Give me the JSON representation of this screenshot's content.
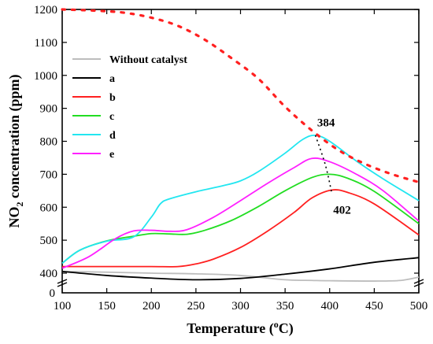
{
  "chart_data": {
    "type": "line",
    "xlabel": "Temperature (",
    "xlabel_sup": "o",
    "xlabel_tail": "C)",
    "ylabel_pre": "NO",
    "ylabel_sub": "2",
    "ylabel_tail": " concentration (ppm)",
    "xlim": [
      100,
      500
    ],
    "ylim_upper": [
      400,
      1200
    ],
    "y_break_tick": 0,
    "x_ticks": [
      100,
      150,
      200,
      250,
      300,
      350,
      400,
      450,
      500
    ],
    "y_ticks": [
      400,
      500,
      600,
      700,
      800,
      900,
      1000,
      1100,
      1200
    ],
    "legend_position": "upper-left",
    "series": [
      {
        "name": "Without catalyst",
        "color": "#bdbdbd",
        "x": [
          100,
          150,
          200,
          250,
          300,
          350,
          380,
          400,
          450,
          480,
          500
        ],
        "y": [
          405,
          403,
          400,
          398,
          393,
          380,
          378,
          377,
          376,
          378,
          388
        ]
      },
      {
        "name": "a",
        "color": "#000000",
        "x": [
          100,
          150,
          200,
          250,
          300,
          350,
          400,
          450,
          500
        ],
        "y": [
          405,
          393,
          385,
          380,
          384,
          397,
          413,
          433,
          447
        ]
      },
      {
        "name": "b",
        "color": "#ff2020",
        "x": [
          100,
          150,
          200,
          230,
          250,
          270,
          300,
          330,
          360,
          380,
          402,
          420,
          450,
          500
        ],
        "y": [
          420,
          420,
          420,
          420,
          428,
          443,
          478,
          527,
          584,
          628,
          652,
          645,
          610,
          516
        ]
      },
      {
        "name": "c",
        "color": "#22dd22",
        "x": [
          100,
          120,
          150,
          180,
          200,
          220,
          240,
          260,
          290,
          320,
          350,
          380,
          400,
          420,
          450,
          500
        ],
        "y": [
          430,
          470,
          498,
          512,
          520,
          519,
          518,
          530,
          560,
          602,
          650,
          690,
          700,
          688,
          648,
          550
        ]
      },
      {
        "name": "d",
        "color": "#22e6f0",
        "x": [
          100,
          120,
          150,
          180,
          200,
          210,
          220,
          250,
          280,
          300,
          320,
          350,
          370,
          384,
          400,
          430,
          460,
          500
        ],
        "y": [
          430,
          470,
          497,
          510,
          570,
          610,
          625,
          647,
          665,
          680,
          708,
          764,
          806,
          818,
          800,
          740,
          686,
          620
        ]
      },
      {
        "name": "e",
        "color": "#ff20ff",
        "x": [
          100,
          130,
          160,
          180,
          200,
          220,
          240,
          270,
          300,
          330,
          360,
          380,
          400,
          430,
          460,
          500
        ],
        "y": [
          415,
          450,
          505,
          528,
          530,
          527,
          532,
          570,
          620,
          672,
          720,
          748,
          738,
          700,
          650,
          558
        ]
      },
      {
        "name": "",
        "color": "#ff2020",
        "dashed": true,
        "x": [
          100,
          140,
          170,
          200,
          230,
          260,
          290,
          320,
          350,
          380,
          410,
          440,
          470,
          500
        ],
        "y": [
          1200,
          1196,
          1190,
          1175,
          1150,
          1108,
          1052,
          990,
          905,
          833,
          773,
          731,
          700,
          676
        ]
      }
    ],
    "annotations": [
      {
        "text": "384",
        "x": 386,
        "y": 845
      },
      {
        "text": "402",
        "x": 404,
        "y": 580
      }
    ],
    "marker_line": {
      "x": [
        384,
        395,
        402
      ],
      "y": [
        818,
        730,
        648
      ]
    }
  }
}
